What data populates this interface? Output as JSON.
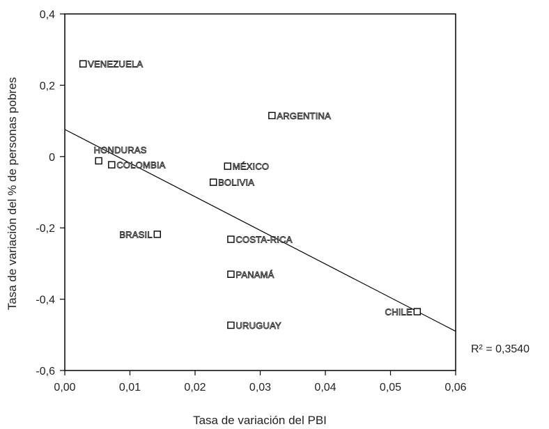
{
  "chart_data": {
    "type": "scatter",
    "title": "",
    "xlabel": "Tasa de variación del PBI",
    "ylabel": "Tasa de variación del % de personas pobres",
    "xlim": [
      0,
      0.06
    ],
    "ylim": [
      -0.6,
      0.4
    ],
    "x_ticks": [
      0,
      0.01,
      0.02,
      0.03,
      0.04,
      0.05,
      0.06
    ],
    "x_tick_labels": [
      "0,00",
      "0,01",
      "0,02",
      "0,03",
      "0,04",
      "0,05",
      "0,06"
    ],
    "y_ticks": [
      -0.6,
      -0.4,
      -0.2,
      0,
      0.2,
      0.4
    ],
    "y_tick_labels": [
      "-0,6",
      "-0,4",
      "-0,2",
      "0",
      "0,2",
      "0,4"
    ],
    "grid": false,
    "marker": "open-square",
    "points": [
      {
        "label": "VENEZUELA",
        "x": 0.0028,
        "y": 0.26,
        "label_side": "right"
      },
      {
        "label": "ARGENTINA",
        "x": 0.0318,
        "y": 0.115,
        "label_side": "right"
      },
      {
        "label": "HONDURAS",
        "x": 0.0052,
        "y": -0.012,
        "label_side": "above"
      },
      {
        "label": "COLOMBIA",
        "x": 0.0072,
        "y": -0.023,
        "label_side": "right"
      },
      {
        "label": "MÉXICO",
        "x": 0.025,
        "y": -0.027,
        "label_side": "right"
      },
      {
        "label": "BOLIVIA",
        "x": 0.0228,
        "y": -0.072,
        "label_side": "right"
      },
      {
        "label": "BRASIL",
        "x": 0.0142,
        "y": -0.218,
        "label_side": "left"
      },
      {
        "label": "COSTA-RICA",
        "x": 0.0255,
        "y": -0.232,
        "label_side": "right"
      },
      {
        "label": "PANAMÁ",
        "x": 0.0255,
        "y": -0.33,
        "label_side": "right"
      },
      {
        "label": "CHILE",
        "x": 0.0541,
        "y": -0.435,
        "label_side": "left"
      },
      {
        "label": "URUGUAY",
        "x": 0.0255,
        "y": -0.473,
        "label_side": "right"
      }
    ],
    "trendline": {
      "x": [
        0,
        0.06
      ],
      "y": [
        0.076,
        -0.49
      ]
    },
    "r_squared_label": "R² = 0,3540"
  }
}
